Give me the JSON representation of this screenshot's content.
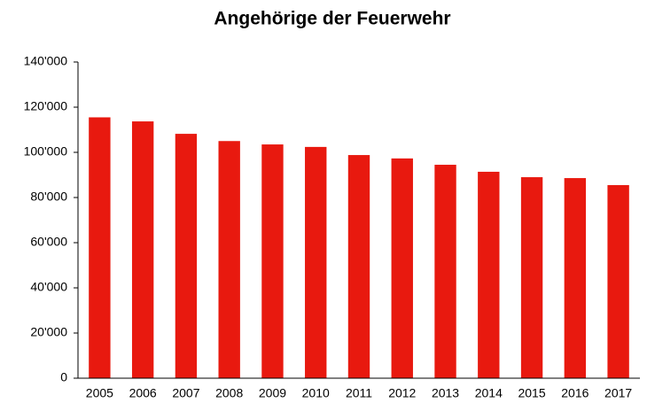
{
  "chart_data": {
    "type": "bar",
    "title": "Angehörige der Feuerwehr",
    "categories": [
      "2005",
      "2006",
      "2007",
      "2008",
      "2009",
      "2010",
      "2011",
      "2012",
      "2013",
      "2014",
      "2015",
      "2016",
      "2017"
    ],
    "values": [
      115500,
      113700,
      108200,
      105000,
      103500,
      102400,
      98800,
      97300,
      94500,
      91400,
      89000,
      88600,
      85500
    ],
    "color": "#e8190f",
    "ylim": [
      0,
      140000
    ],
    "yticks": [
      0,
      {
        "value": 20000,
        "label": "20'000"
      },
      {
        "value": 40000,
        "label": "40'000"
      },
      {
        "value": 60000,
        "label": "60'000"
      },
      {
        "value": 80000,
        "label": "80'000"
      },
      {
        "value": 100000,
        "label": "100'000"
      },
      {
        "value": 120000,
        "label": "120'000"
      },
      {
        "value": 140000,
        "label": "140'000"
      }
    ],
    "grid": false
  }
}
